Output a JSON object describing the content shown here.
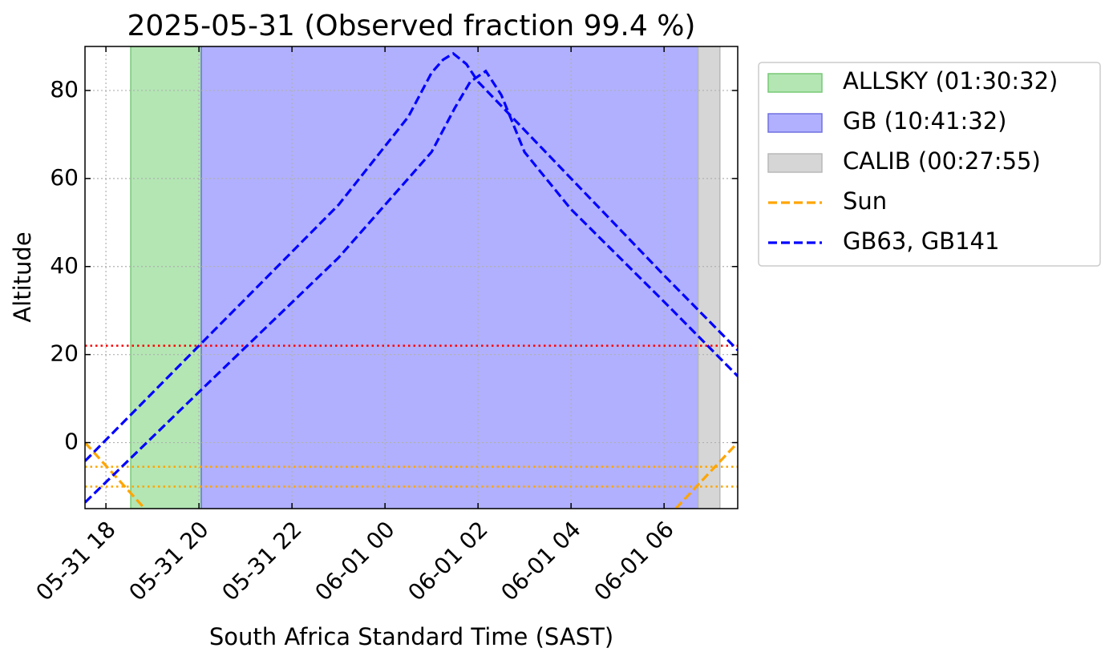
{
  "chart_data": {
    "type": "line",
    "title": "2025-05-31 (Observed fraction 99.4 %)",
    "xlabel": "South Africa Standard Time (SAST)",
    "ylabel": "Altitude",
    "xlim": [
      "2025-05-31T17:33",
      "2025-06-01T07:35"
    ],
    "xticks": [
      {
        "value": "2025-05-31T18:00",
        "label": "05-31 18"
      },
      {
        "value": "2025-05-31T20:00",
        "label": "05-31 20"
      },
      {
        "value": "2025-05-31T22:00",
        "label": "05-31 22"
      },
      {
        "value": "2025-06-01T00:00",
        "label": "06-01 00"
      },
      {
        "value": "2025-06-01T02:00",
        "label": "06-01 02"
      },
      {
        "value": "2025-06-01T04:00",
        "label": "06-01 04"
      },
      {
        "value": "2025-06-01T06:00",
        "label": "06-01 06"
      }
    ],
    "ylim": [
      -15,
      90
    ],
    "yticks": [
      0,
      20,
      40,
      60,
      80
    ],
    "grid": true,
    "legend": "outside upper right",
    "spans": [
      {
        "name": "ALLSKY (01:30:32)",
        "start": "2025-05-31T18:32",
        "end": "2025-05-31T20:03",
        "color": "#b3e6b3",
        "edge": "#77c977"
      },
      {
        "name": "GB (10:41:32)",
        "start": "2025-05-31T20:03",
        "end": "2025-06-01T06:44",
        "color": "#b0b0ff",
        "edge": "#7070e0"
      },
      {
        "name": "CALIB (00:27:55)",
        "start": "2025-06-01T06:44",
        "end": "2025-06-01T07:12",
        "color": "#d6d6d6",
        "edge": "#b8b8b8"
      }
    ],
    "hlines": [
      {
        "value": 22,
        "color": "#ff0000"
      },
      {
        "value": -5.5,
        "color": "#ffa500"
      },
      {
        "value": -10,
        "color": "#ffa500"
      }
    ],
    "series": [
      {
        "name": "Sun",
        "color": "#ffa500",
        "curves": [
          {
            "x": [
              "2025-05-31T17:33",
              "2025-05-31T18:50",
              null,
              "2025-06-01T06:15",
              "2025-06-01T07:35"
            ],
            "values": [
              0,
              -15,
              null,
              -15,
              0
            ]
          }
        ]
      },
      {
        "name": "GB63, GB141",
        "color": "#0000ff",
        "curves": [
          {
            "x": [
              "2025-05-31T17:33",
              "2025-05-31T20:00",
              "2025-05-31T23:00",
              "2025-06-01T00:30",
              "2025-06-01T01:00",
              "2025-06-01T01:15",
              "2025-06-01T01:28",
              "2025-06-01T01:45",
              "2025-06-01T02:00",
              "2025-06-01T04:00",
              "2025-06-01T06:00",
              "2025-06-01T07:35"
            ],
            "values": [
              -4.2,
              22,
              54,
              74,
              84,
              87,
              88.4,
              86,
              82,
              60,
              38,
              21
            ]
          },
          {
            "x": [
              "2025-05-31T17:33",
              "2025-05-31T20:03",
              "2025-05-31T23:00",
              "2025-06-01T01:00",
              "2025-06-01T01:30",
              "2025-06-01T01:50",
              "2025-06-01T02:10",
              "2025-06-01T02:30",
              "2025-06-01T03:00",
              "2025-06-01T04:00",
              "2025-06-01T06:00",
              "2025-06-01T07:35"
            ],
            "values": [
              -13.6,
              12,
              42,
              66,
              76,
              82,
              84.4,
              79,
              66,
              53,
              32,
              15.1
            ]
          }
        ]
      }
    ]
  }
}
